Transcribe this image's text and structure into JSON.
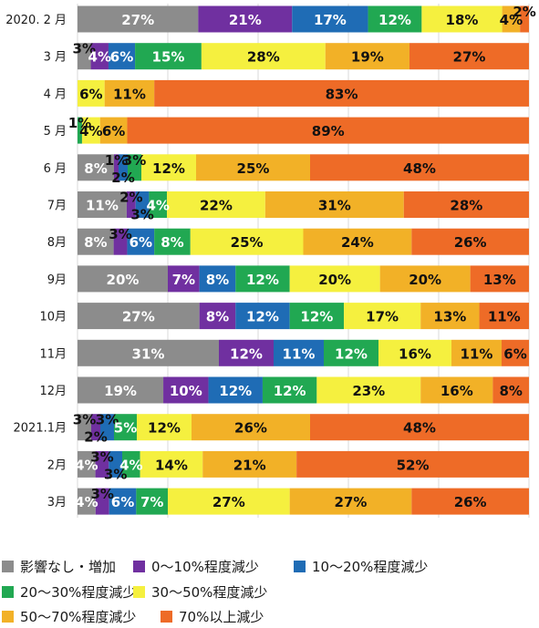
{
  "chart_data": {
    "type": "bar",
    "orientation": "horizontal",
    "stacked": true,
    "categories": [
      "2020. 2 月",
      "3 月",
      "4 月",
      "5 月",
      "6 月",
      "7月",
      "8月",
      "9月",
      "10月",
      "11月",
      "12月",
      "2021.1月",
      "2月",
      "3月"
    ],
    "series": [
      {
        "name": "影響なし・増加",
        "color": "#8c8c8c",
        "values": [
          27,
          3,
          0,
          0,
          8,
          11,
          8,
          20,
          27,
          31,
          19,
          3,
          4,
          4
        ]
      },
      {
        "name": "0～10%程度減少",
        "color": "#7030a0",
        "values": [
          21,
          4,
          0,
          0,
          1,
          2,
          3,
          7,
          8,
          12,
          10,
          2,
          3,
          3
        ]
      },
      {
        "name": "10～20%程度減少",
        "color": "#1f6cb5",
        "values": [
          17,
          6,
          0,
          0,
          2,
          3,
          6,
          8,
          12,
          11,
          12,
          3,
          3,
          6
        ]
      },
      {
        "name": "20～30%程度減少",
        "color": "#21a852",
        "values": [
          12,
          15,
          0,
          1,
          3,
          4,
          8,
          12,
          12,
          12,
          12,
          5,
          4,
          7
        ]
      },
      {
        "name": "30～50%程度減少",
        "color": "#f5f03f",
        "values": [
          18,
          28,
          6,
          4,
          12,
          22,
          25,
          20,
          17,
          16,
          23,
          12,
          14,
          27
        ]
      },
      {
        "name": "50～70%程度減少",
        "color": "#f2b127",
        "values": [
          4,
          19,
          11,
          6,
          25,
          31,
          24,
          20,
          13,
          11,
          16,
          26,
          21,
          27
        ]
      },
      {
        "name": "70%以上減少",
        "color": "#ee6b27",
        "values": [
          2,
          27,
          83,
          89,
          48,
          28,
          26,
          13,
          11,
          6,
          8,
          48,
          52,
          26
        ]
      }
    ],
    "xlim": [
      0,
      100
    ],
    "grid": true,
    "legend_position": "bottom"
  }
}
